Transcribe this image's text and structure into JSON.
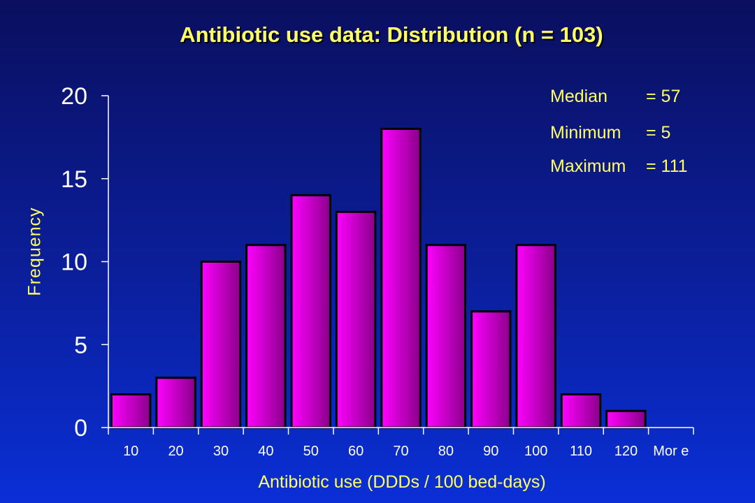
{
  "chart_data": {
    "type": "bar",
    "title": "Antibiotic use data: Distribution (n = 103)",
    "xlabel": "Antibiotic use (DDDs / 100 bed-days)",
    "ylabel": "Frequency",
    "categories": [
      "10",
      "20",
      "30",
      "40",
      "50",
      "60",
      "70",
      "80",
      "90",
      "100",
      "110",
      "120",
      "Mor e"
    ],
    "values": [
      2,
      3,
      10,
      11,
      14,
      13,
      18,
      11,
      7,
      11,
      2,
      1,
      0
    ],
    "ylim": [
      0,
      20
    ],
    "yticks": [
      "0",
      "5",
      "10",
      "15",
      "20"
    ],
    "grid": false,
    "legend": "none",
    "colors": {
      "bar_fill": "#ff00ff",
      "bar_shade": "#8a008a",
      "bar_edge": "#000000",
      "axis": "#ffffff",
      "tick_text": "#ffffff",
      "label_text": "#ffff66"
    }
  },
  "stats": [
    {
      "label": "Median",
      "value": "= 57"
    },
    {
      "label": "Minimum",
      "value": "= 5"
    },
    {
      "label": "Maximum",
      "value": "= 111"
    }
  ]
}
